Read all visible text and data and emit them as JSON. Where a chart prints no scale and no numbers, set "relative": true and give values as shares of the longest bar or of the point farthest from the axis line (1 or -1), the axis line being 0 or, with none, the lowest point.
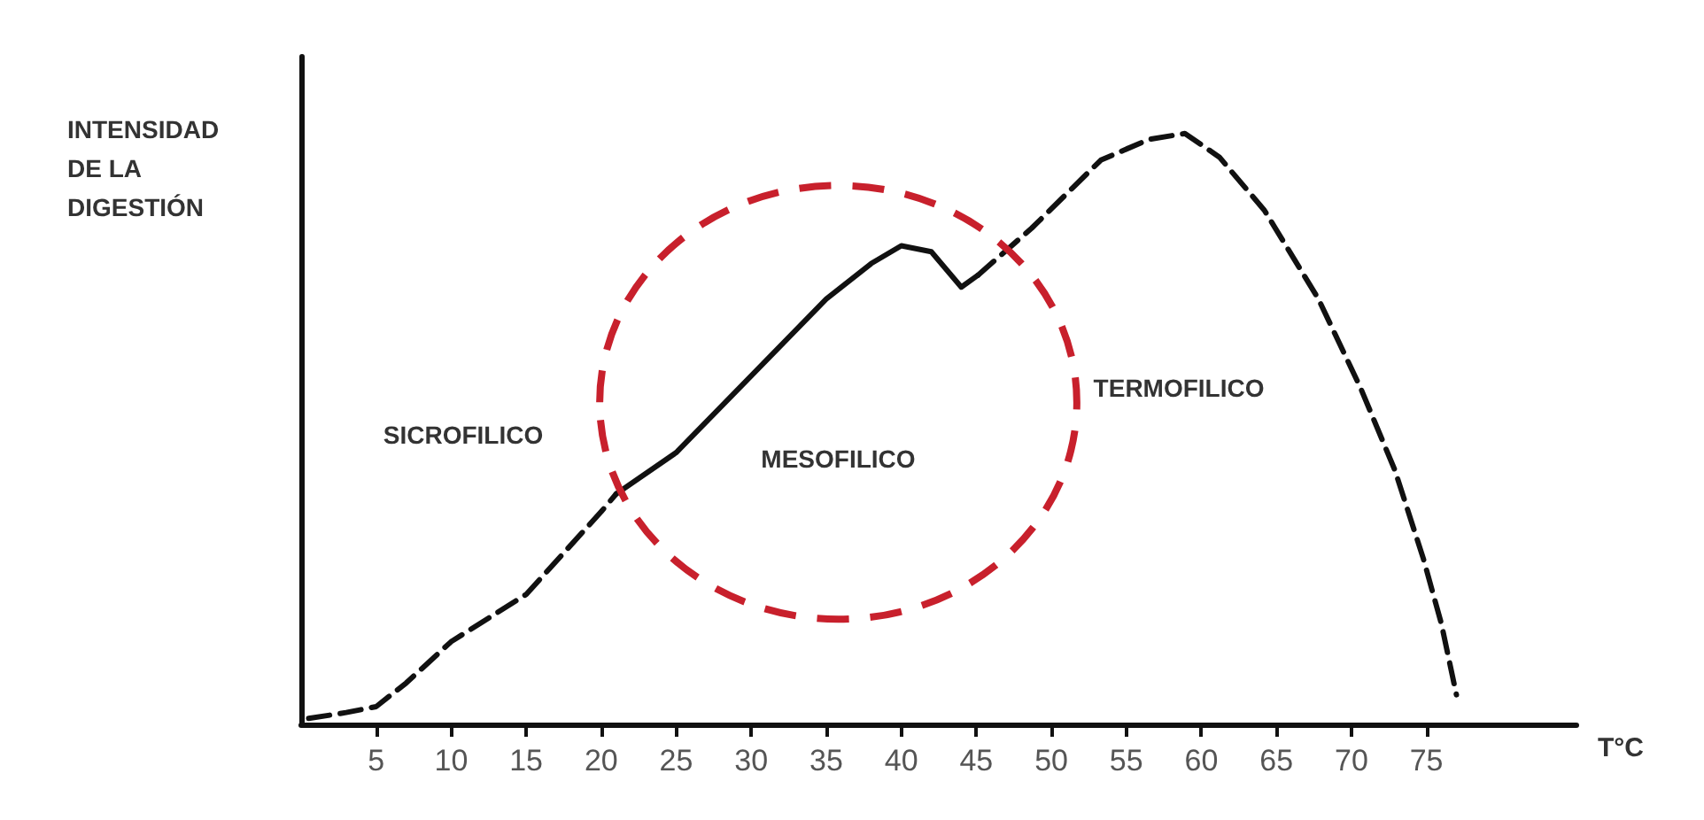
{
  "chart_data": {
    "type": "line",
    "relative": true,
    "ylabel": "INTENSIDAD\nDE LA\nDIGESTIÓN",
    "xlabel": "T°C",
    "xlim": [
      0,
      85
    ],
    "xticks": [
      5,
      10,
      15,
      20,
      25,
      30,
      35,
      40,
      45,
      50,
      55,
      60,
      65,
      70,
      75
    ],
    "marker": "none",
    "grid": false,
    "series": [
      {
        "color": "#111111",
        "line_style": "dashed",
        "x": [
          0.5,
          3,
          5,
          7,
          10,
          15,
          20,
          21
        ],
        "values": [
          0.01,
          0.02,
          0.03,
          0.07,
          0.14,
          0.22,
          0.36,
          0.39
        ]
      },
      {
        "color": "#111111",
        "line_style": "solid",
        "x": [
          21,
          25,
          30,
          35,
          38,
          40,
          42,
          44,
          45.1
        ],
        "values": [
          0.39,
          0.46,
          0.59,
          0.72,
          0.78,
          0.81,
          0.8,
          0.74,
          0.76
        ]
      },
      {
        "color": "#111111",
        "line_style": "dashed",
        "x": [
          45.1,
          48.7,
          53.3,
          56.5,
          58.9,
          61.2,
          64.2,
          67.8,
          70.6,
          72.9,
          74.8,
          76,
          77
        ],
        "values": [
          0.76,
          0.84,
          0.955,
          0.99,
          1,
          0.96,
          0.87,
          0.72,
          0.57,
          0.43,
          0.28,
          0.17,
          0.05
        ]
      }
    ],
    "annotations": [
      "SICROFILICO",
      "MESOFILICO",
      "TERMOFILICO"
    ]
  }
}
